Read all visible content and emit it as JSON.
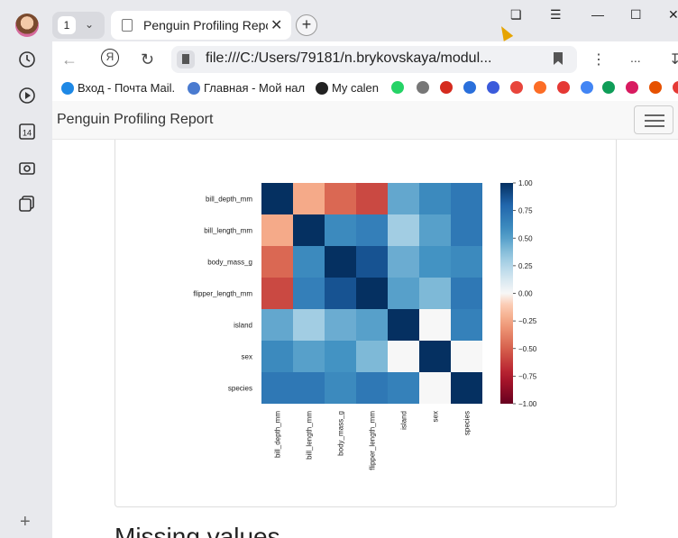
{
  "browser": {
    "tab_count": "1",
    "tab_title": "Penguin Profiling Report",
    "url": "file:///C:/Users/79181/n.brykovskaya/modul...",
    "menu_dots": "...",
    "window_controls": [
      "minimize",
      "maximize",
      "close"
    ]
  },
  "rail": {
    "items": [
      "history-icon",
      "play-icon",
      "calendar-icon",
      "screenshot-icon",
      "collections-icon"
    ],
    "calendar_day": "14"
  },
  "bookmarks": [
    {
      "label": "Вход - Почта Mail.",
      "color": "#1e88e5"
    },
    {
      "label": "Главная - Мой нал",
      "color": "#4a7bd0"
    },
    {
      "label": "My calen",
      "color": "#222222"
    },
    {
      "label": "",
      "color": "#25d366"
    },
    {
      "label": "",
      "color": "#777777"
    },
    {
      "label": "",
      "color": "#d52b1e"
    },
    {
      "label": "",
      "color": "#2a6fdb"
    },
    {
      "label": "",
      "color": "#3b5bdb"
    },
    {
      "label": "",
      "color": "#e8453c"
    },
    {
      "label": "",
      "color": "#fc6d26"
    },
    {
      "label": "",
      "color": "#e53935"
    },
    {
      "label": "",
      "color": "#4285f4"
    },
    {
      "label": "",
      "color": "#0f9d58"
    },
    {
      "label": "",
      "color": "#d81b60"
    },
    {
      "label": "",
      "color": "#e65100"
    },
    {
      "label": "",
      "color": "#e53935"
    }
  ],
  "page": {
    "brand": "Penguin Profiling Report",
    "section_title": "Missing values"
  },
  "chart_data": {
    "type": "heatmap",
    "rows": [
      "bill_depth_mm",
      "bill_length_mm",
      "body_mass_g",
      "flipper_length_mm",
      "island",
      "sex",
      "species"
    ],
    "cols": [
      "bill_depth_mm",
      "bill_length_mm",
      "body_mass_g",
      "flipper_length_mm",
      "island",
      "sex",
      "species"
    ],
    "values": [
      [
        1.0,
        -0.23,
        -0.47,
        -0.58,
        0.47,
        0.6,
        0.7
      ],
      [
        -0.23,
        1.0,
        0.6,
        0.66,
        0.3,
        0.5,
        0.7
      ],
      [
        -0.47,
        0.6,
        1.0,
        0.87,
        0.45,
        0.55,
        0.6
      ],
      [
        -0.58,
        0.66,
        0.87,
        1.0,
        0.5,
        0.4,
        0.7
      ],
      [
        0.47,
        0.3,
        0.45,
        0.5,
        1.0,
        0.0,
        0.65
      ],
      [
        0.6,
        0.5,
        0.55,
        0.4,
        0.0,
        1.0,
        0.0
      ],
      [
        0.7,
        0.7,
        0.6,
        0.7,
        0.65,
        0.0,
        1.0
      ]
    ],
    "colorbar_ticks": [
      "1.00",
      "0.75",
      "0.50",
      "0.25",
      "0.00",
      "−0.25",
      "−0.50",
      "−0.75",
      "−1.00"
    ],
    "vmin": -1.0,
    "vmax": 1.0,
    "colormap": "RdBu"
  }
}
